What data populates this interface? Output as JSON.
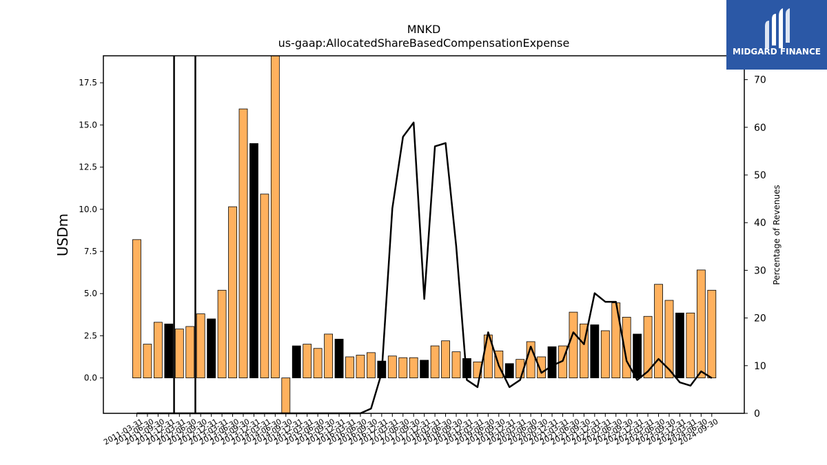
{
  "brand": {
    "logo_text": "MIDGARD FINANCE",
    "logo_bg": "#2b58a6",
    "logo_fg": "#ffffff"
  },
  "chart_data": {
    "type": "bar",
    "title": "MNKD",
    "subtitle": "us-gaap:AllocatedShareBasedCompensationExpense",
    "xlabel": "",
    "ylabel": "USDm",
    "y2label": "Percentage of Revenues",
    "ylim": [
      -2.1,
      19.1
    ],
    "y2lim": [
      0,
      75
    ],
    "yticks": [
      0.0,
      2.5,
      5.0,
      7.5,
      10.0,
      12.5,
      15.0,
      17.5
    ],
    "y2ticks": [
      0,
      10,
      20,
      30,
      40,
      50,
      60,
      70
    ],
    "colors": {
      "quarter": "#ffb15e",
      "annual": "#000000",
      "line": "#000000"
    },
    "categories": [
      "2011-03-31",
      "2011-06-30",
      "2011-09-30",
      "2011-12-31",
      "2012-03-31",
      "2012-06-30",
      "2012-09-30",
      "2012-12-31",
      "2013-03-31",
      "2013-06-30",
      "2013-09-30",
      "2013-12-31",
      "2014-03-31",
      "2014-06-30",
      "2014-09-30",
      "2014-12-31",
      "2015-03-31",
      "2015-06-30",
      "2015-09-30",
      "2015-12-31",
      "2016-03-31",
      "2016-06-30",
      "2016-09-30",
      "2016-12-31",
      "2017-03-31",
      "2017-06-30",
      "2017-09-30",
      "2017-12-31",
      "2018-03-31",
      "2018-06-30",
      "2018-09-30",
      "2018-12-31",
      "2019-03-31",
      "2019-06-30",
      "2019-09-30",
      "2019-12-31",
      "2020-03-31",
      "2020-06-30",
      "2020-09-30",
      "2020-12-31",
      "2021-03-31",
      "2021-06-30",
      "2021-09-30",
      "2021-12-31",
      "2022-03-31",
      "2022-06-30",
      "2022-09-30",
      "2022-12-31",
      "2023-03-31",
      "2023-06-30",
      "2023-09-30",
      "2023-12-31",
      "2024-03-31",
      "2024-06-30",
      "2024-09-30"
    ],
    "bar_kind": [
      "quarter",
      "quarter",
      "quarter",
      "annual",
      "quarter",
      "quarter",
      "quarter",
      "annual",
      "quarter",
      "quarter",
      "quarter",
      "annual",
      "quarter",
      "quarter",
      "quarter",
      "annual",
      "quarter",
      "quarter",
      "quarter",
      "annual",
      "quarter",
      "quarter",
      "quarter",
      "annual",
      "quarter",
      "quarter",
      "quarter",
      "annual",
      "quarter",
      "quarter",
      "quarter",
      "annual",
      "quarter",
      "quarter",
      "quarter",
      "annual",
      "quarter",
      "quarter",
      "quarter",
      "annual",
      "quarter",
      "quarter",
      "quarter",
      "annual",
      "quarter",
      "quarter",
      "quarter",
      "annual",
      "quarter",
      "quarter",
      "quarter",
      "annual",
      "quarter",
      "quarter",
      "quarter"
    ],
    "series": [
      {
        "name": "",
        "values": [
          8.2,
          2.0,
          3.3,
          3.2,
          2.9,
          3.05,
          3.8,
          3.5,
          5.2,
          10.15,
          15.95,
          13.9,
          10.9,
          19.1,
          -2.1,
          1.9,
          2.0,
          1.75,
          2.6,
          2.3,
          1.25,
          1.35,
          1.5,
          1.0,
          1.3,
          1.2,
          1.2,
          1.05,
          1.9,
          2.2,
          1.55,
          1.15,
          0.95,
          2.55,
          1.6,
          0.85,
          1.1,
          2.15,
          1.25,
          1.85,
          1.9,
          3.9,
          3.2,
          3.15,
          2.8,
          4.45,
          3.6,
          2.6,
          3.65,
          5.55,
          4.6,
          3.85,
          3.85,
          6.4,
          5.2
        ]
      },
      {
        "name": "",
        "axis": "right",
        "type": "line",
        "values": [
          0,
          0,
          0,
          0,
          0,
          0,
          0,
          0,
          0,
          0,
          0,
          0,
          0,
          0,
          0,
          0,
          0,
          0,
          0,
          0,
          0,
          0,
          1,
          8.5,
          43,
          58,
          61,
          24,
          56,
          56.7,
          35,
          7,
          5.5,
          17,
          10,
          5.5,
          7,
          14,
          8.5,
          10,
          11,
          17,
          14.5,
          25.2,
          23.4,
          23.4,
          11,
          7,
          8.8,
          11.4,
          9.2,
          6.5,
          5.8,
          8.8,
          7.4
        ]
      }
    ],
    "vertical_markers": [
      "2011-12-31",
      "2012-06-30"
    ],
    "grid": false,
    "legend": "none"
  }
}
